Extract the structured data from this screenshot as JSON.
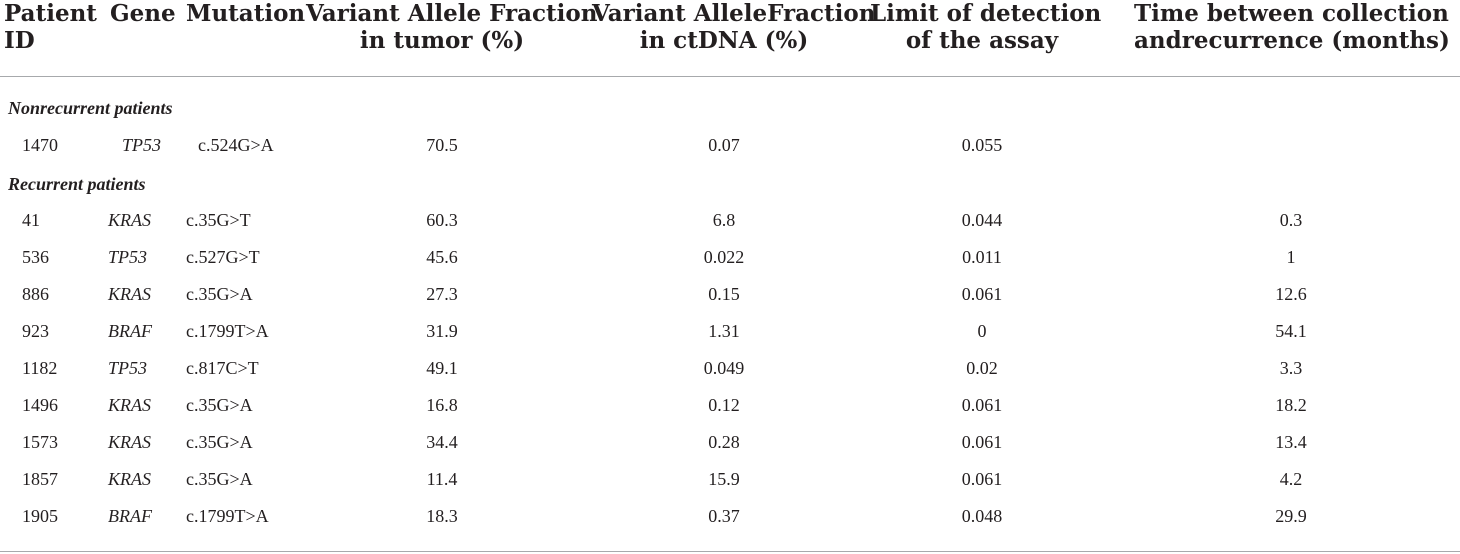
{
  "headers": {
    "patient_id": [
      "Patient",
      "ID"
    ],
    "gene": [
      "Gene"
    ],
    "mutation": [
      "Mutation"
    ],
    "vaf_tumor": [
      "Variant Allele Fraction",
      "in tumor (%)"
    ],
    "vaf_ctdna": [
      "Variant AlleleFraction",
      "in ctDNA (%)"
    ],
    "lod": [
      "Limit of detection",
      "of the assay"
    ],
    "time": [
      "Time between collection",
      "andrecurrence (months)"
    ]
  },
  "sections": [
    {
      "title": "Nonrecurrent patients",
      "rows": [
        {
          "patient_id": "1470",
          "gene": "TP53",
          "mutation": "c.524G>A",
          "vaf_tumor": "70.5",
          "vaf_ctdna": "0.07",
          "lod": "0.055",
          "time": ""
        }
      ]
    },
    {
      "title": "Recurrent patients",
      "rows": [
        {
          "patient_id": "41",
          "gene": "KRAS",
          "mutation": "c.35G>T",
          "vaf_tumor": "60.3",
          "vaf_ctdna": "6.8",
          "lod": "0.044",
          "time": "0.3"
        },
        {
          "patient_id": "536",
          "gene": "TP53",
          "mutation": "c.527G>T",
          "vaf_tumor": "45.6",
          "vaf_ctdna": "0.022",
          "lod": "0.011",
          "time": "1"
        },
        {
          "patient_id": "886",
          "gene": "KRAS",
          "mutation": "c.35G>A",
          "vaf_tumor": "27.3",
          "vaf_ctdna": "0.15",
          "lod": "0.061",
          "time": "12.6"
        },
        {
          "patient_id": "923",
          "gene": "BRAF",
          "mutation": "c.1799T>A",
          "vaf_tumor": "31.9",
          "vaf_ctdna": "1.31",
          "lod": "0",
          "time": "54.1"
        },
        {
          "patient_id": "1182",
          "gene": "TP53",
          "mutation": "c.817C>T",
          "vaf_tumor": "49.1",
          "vaf_ctdna": "0.049",
          "lod": "0.02",
          "time": "3.3"
        },
        {
          "patient_id": "1496",
          "gene": "KRAS",
          "mutation": "c.35G>A",
          "vaf_tumor": "16.8",
          "vaf_ctdna": "0.12",
          "lod": "0.061",
          "time": "18.2"
        },
        {
          "patient_id": "1573",
          "gene": "KRAS",
          "mutation": "c.35G>A",
          "vaf_tumor": "34.4",
          "vaf_ctdna": "0.28",
          "lod": "0.061",
          "time": "13.4"
        },
        {
          "patient_id": "1857",
          "gene": "KRAS",
          "mutation": "c.35G>A",
          "vaf_tumor": "11.4",
          "vaf_ctdna": "15.9",
          "lod": "0.061",
          "time": "4.2"
        },
        {
          "patient_id": "1905",
          "gene": "BRAF",
          "mutation": "c.1799T>A",
          "vaf_tumor": "18.3",
          "vaf_ctdna": "0.37",
          "lod": "0.048",
          "time": "29.9"
        }
      ]
    }
  ]
}
